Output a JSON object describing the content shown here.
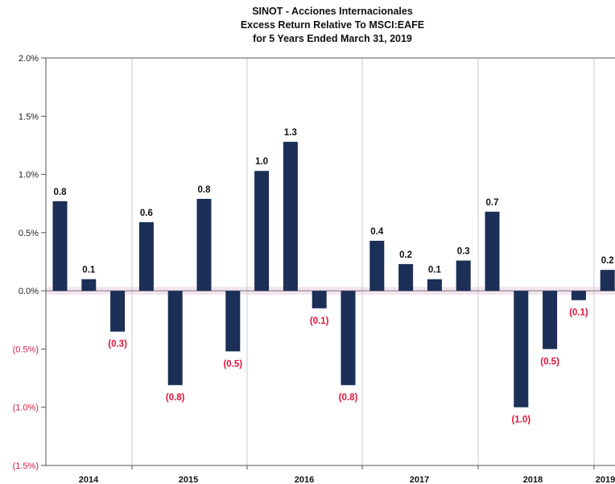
{
  "chart_data": {
    "type": "bar",
    "title": [
      "SINOT - Acciones Internacionales",
      "Excess Return Relative To MSCI:EAFE",
      "for 5 Years Ended March 31, 2019"
    ],
    "xlabel": "",
    "ylabel": "",
    "ylim": [
      -1.5,
      2.0
    ],
    "y_ticks": [
      2.0,
      1.5,
      1.0,
      0.5,
      0.0,
      -0.5,
      -1.0,
      -1.5
    ],
    "y_tick_labels": [
      "2.0%",
      "1.5%",
      "1.0%",
      "0.5%",
      "0.0%",
      "(0.5%)",
      "(1.0%)",
      "(1.5%)"
    ],
    "year_labels": [
      "2014",
      "2015",
      "2016",
      "2017",
      "2018",
      "2019"
    ],
    "values": [
      0.77,
      0.1,
      -0.35,
      0.59,
      -0.81,
      0.79,
      -0.52,
      1.03,
      1.28,
      -0.15,
      -0.81,
      0.43,
      0.23,
      0.1,
      0.26,
      0.68,
      -1.0,
      -0.5,
      -0.08,
      0.18
    ],
    "data_labels": [
      "0.8",
      "0.1",
      "(0.3)",
      "0.6",
      "(0.8)",
      "0.8",
      "(0.5)",
      "1.0",
      "1.3",
      "(0.1)",
      "(0.8)",
      "0.4",
      "0.2",
      "0.1",
      "0.3",
      "0.7",
      "(1.0)",
      "(0.5)",
      "(0.1)",
      "0.2"
    ],
    "grid": "vertical year separators",
    "legend": "none",
    "colors": {
      "bar": "#1b2f57",
      "negative_label": "#e0143c",
      "positive_label": "#111111",
      "negative_tick": "#d21f46",
      "axis": "#555555",
      "zero_band": "#f1e0ec"
    }
  }
}
